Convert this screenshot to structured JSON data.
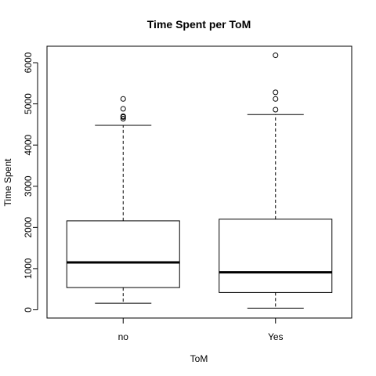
{
  "chart_data": {
    "type": "boxplot",
    "title": "Time Spent per ToM",
    "xlabel": "ToM",
    "ylabel": "Time Spent",
    "categories": [
      "no",
      "Yes"
    ],
    "yticks": [
      0,
      1000,
      2000,
      3000,
      4000,
      5000,
      6000
    ],
    "ylim": [
      -200,
      6400
    ],
    "boxes": [
      {
        "name": "no",
        "whisker_low": 160,
        "q1": 540,
        "median": 1150,
        "q3": 2160,
        "whisker_high": 4480,
        "outliers": [
          4640,
          4680,
          4700,
          4880,
          5120
        ]
      },
      {
        "name": "Yes",
        "whisker_low": 40,
        "q1": 420,
        "median": 910,
        "q3": 2200,
        "whisker_high": 4740,
        "outliers": [
          4860,
          5120,
          5280,
          6180
        ]
      }
    ]
  }
}
